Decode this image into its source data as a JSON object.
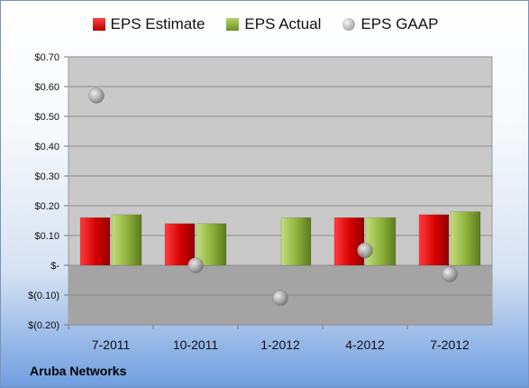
{
  "chart_data": {
    "type": "bar",
    "categories": [
      "7-2011",
      "10-2011",
      "1-2012",
      "4-2012",
      "7-2012"
    ],
    "series": [
      {
        "name": "EPS Estimate",
        "kind": "bar",
        "color": "#d40000",
        "values": [
          0.16,
          0.14,
          null,
          0.16,
          0.17
        ]
      },
      {
        "name": "EPS Actual",
        "kind": "bar",
        "color": "#8bb03a",
        "values": [
          0.17,
          0.14,
          0.16,
          0.16,
          0.18
        ]
      },
      {
        "name": "EPS GAAP",
        "kind": "marker",
        "color": "#a0a0a0",
        "values": [
          0.57,
          0.0,
          -0.11,
          0.05,
          -0.03
        ]
      }
    ],
    "ylim": [
      -0.2,
      0.7
    ],
    "yticks": [
      {
        "value": 0.7,
        "label": "$0.70"
      },
      {
        "value": 0.6,
        "label": "$0.60"
      },
      {
        "value": 0.5,
        "label": "$0.50"
      },
      {
        "value": 0.4,
        "label": "$0.40"
      },
      {
        "value": 0.3,
        "label": "$0.30"
      },
      {
        "value": 0.2,
        "label": "$0.20"
      },
      {
        "value": 0.1,
        "label": "$0.10"
      },
      {
        "value": 0.0,
        "label": "$-"
      },
      {
        "value": -0.1,
        "label": "$(0.10)"
      },
      {
        "value": -0.2,
        "label": "$(0.20)"
      }
    ],
    "legend_position": "top",
    "grid": true,
    "company": "Aruba Networks"
  }
}
